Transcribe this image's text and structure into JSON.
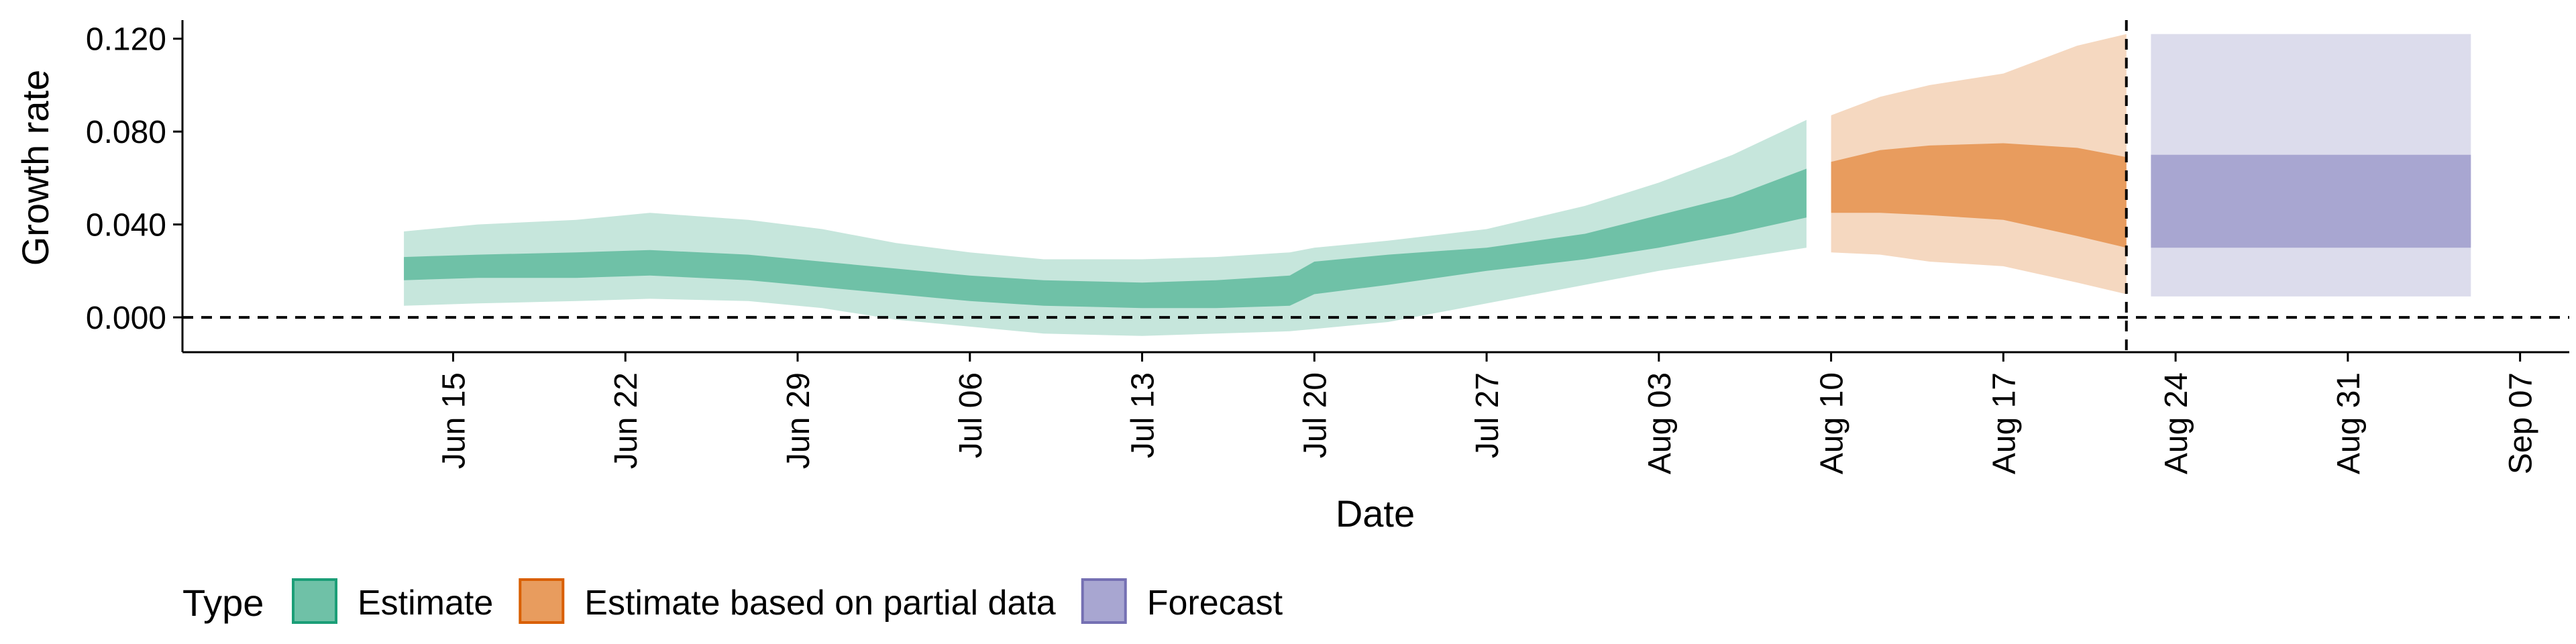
{
  "chart_data": {
    "type": "area",
    "title": "",
    "xlabel": "Date",
    "ylabel": "Growth rate",
    "x_axis": {
      "range": [
        "2020-06-04",
        "2020-09-09"
      ],
      "ticks": [
        {
          "date": "2020-06-15",
          "label": "Jun 15"
        },
        {
          "date": "2020-06-22",
          "label": "Jun 22"
        },
        {
          "date": "2020-06-29",
          "label": "Jun 29"
        },
        {
          "date": "2020-07-06",
          "label": "Jul 06"
        },
        {
          "date": "2020-07-13",
          "label": "Jul 13"
        },
        {
          "date": "2020-07-20",
          "label": "Jul 20"
        },
        {
          "date": "2020-07-27",
          "label": "Jul 27"
        },
        {
          "date": "2020-08-03",
          "label": "Aug 03"
        },
        {
          "date": "2020-08-10",
          "label": "Aug 10"
        },
        {
          "date": "2020-08-17",
          "label": "Aug 17"
        },
        {
          "date": "2020-08-24",
          "label": "Aug 24"
        },
        {
          "date": "2020-08-31",
          "label": "Aug 31"
        },
        {
          "date": "2020-09-07",
          "label": "Sep 07"
        }
      ]
    },
    "y_axis": {
      "range": [
        -0.015,
        0.128
      ],
      "ticks": [
        {
          "value": 0.0,
          "label": "0.000"
        },
        {
          "value": 0.04,
          "label": "0.040"
        },
        {
          "value": 0.08,
          "label": "0.080"
        },
        {
          "value": 0.12,
          "label": "0.120"
        }
      ]
    },
    "reference_lines": {
      "horizontal_y": 0.0,
      "vertical_date": "2020-08-22"
    },
    "grid": false,
    "legend": {
      "title": "Type",
      "position": "bottom-left",
      "entries": [
        {
          "label": "Estimate",
          "fill": "#6fc1a7",
          "border": "#1b9e77"
        },
        {
          "label": "Estimate based on partial data",
          "fill": "#e89c5e",
          "border": "#d95f02"
        },
        {
          "label": "Forecast",
          "fill": "#a8a6d1",
          "border": "#7570b3"
        }
      ]
    },
    "series": [
      {
        "type_label": "Estimate",
        "outer_color": "#c6e6dc",
        "inner_color": "#6fc1a7",
        "points": [
          {
            "date": "2020-06-13",
            "lo90": 0.005,
            "lo50": 0.016,
            "hi50": 0.026,
            "hi90": 0.037
          },
          {
            "date": "2020-06-16",
            "lo90": 0.006,
            "lo50": 0.017,
            "hi50": 0.027,
            "hi90": 0.04
          },
          {
            "date": "2020-06-20",
            "lo90": 0.007,
            "lo50": 0.017,
            "hi50": 0.028,
            "hi90": 0.042
          },
          {
            "date": "2020-06-23",
            "lo90": 0.008,
            "lo50": 0.018,
            "hi50": 0.029,
            "hi90": 0.045
          },
          {
            "date": "2020-06-27",
            "lo90": 0.007,
            "lo50": 0.016,
            "hi50": 0.027,
            "hi90": 0.042
          },
          {
            "date": "2020-06-30",
            "lo90": 0.004,
            "lo50": 0.013,
            "hi50": 0.024,
            "hi90": 0.038
          },
          {
            "date": "2020-07-03",
            "lo90": -0.001,
            "lo50": 0.01,
            "hi50": 0.021,
            "hi90": 0.032
          },
          {
            "date": "2020-07-06",
            "lo90": -0.004,
            "lo50": 0.007,
            "hi50": 0.018,
            "hi90": 0.028
          },
          {
            "date": "2020-07-09",
            "lo90": -0.007,
            "lo50": 0.005,
            "hi50": 0.016,
            "hi90": 0.025
          },
          {
            "date": "2020-07-13",
            "lo90": -0.008,
            "lo50": 0.004,
            "hi50": 0.015,
            "hi90": 0.025
          },
          {
            "date": "2020-07-16",
            "lo90": -0.007,
            "lo50": 0.004,
            "hi50": 0.016,
            "hi90": 0.026
          },
          {
            "date": "2020-07-19",
            "lo90": -0.006,
            "lo50": 0.005,
            "hi50": 0.018,
            "hi90": 0.028
          },
          {
            "date": "2020-07-20",
            "lo90": -0.005,
            "lo50": 0.01,
            "hi50": 0.024,
            "hi90": 0.03
          },
          {
            "date": "2020-07-23",
            "lo90": -0.002,
            "lo50": 0.014,
            "hi50": 0.027,
            "hi90": 0.033
          },
          {
            "date": "2020-07-27",
            "lo90": 0.006,
            "lo50": 0.02,
            "hi50": 0.03,
            "hi90": 0.038
          },
          {
            "date": "2020-07-31",
            "lo90": 0.014,
            "lo50": 0.025,
            "hi50": 0.036,
            "hi90": 0.048
          },
          {
            "date": "2020-08-03",
            "lo90": 0.02,
            "lo50": 0.03,
            "hi50": 0.044,
            "hi90": 0.058
          },
          {
            "date": "2020-08-06",
            "lo90": 0.025,
            "lo50": 0.036,
            "hi50": 0.052,
            "hi90": 0.07
          },
          {
            "date": "2020-08-09",
            "lo90": 0.03,
            "lo50": 0.043,
            "hi50": 0.064,
            "hi90": 0.085
          }
        ]
      },
      {
        "type_label": "Estimate based on partial data",
        "outer_color": "#f5d8c0",
        "inner_color": "#e89c5e",
        "points": [
          {
            "date": "2020-08-10",
            "lo90": 0.028,
            "lo50": 0.045,
            "hi50": 0.067,
            "hi90": 0.087
          },
          {
            "date": "2020-08-12",
            "lo90": 0.027,
            "lo50": 0.045,
            "hi50": 0.072,
            "hi90": 0.095
          },
          {
            "date": "2020-08-14",
            "lo90": 0.024,
            "lo50": 0.044,
            "hi50": 0.074,
            "hi90": 0.1
          },
          {
            "date": "2020-08-17",
            "lo90": 0.022,
            "lo50": 0.042,
            "hi50": 0.075,
            "hi90": 0.105
          },
          {
            "date": "2020-08-20",
            "lo90": 0.015,
            "lo50": 0.035,
            "hi50": 0.073,
            "hi90": 0.117
          },
          {
            "date": "2020-08-22",
            "lo90": 0.01,
            "lo50": 0.03,
            "hi50": 0.069,
            "hi90": 0.122
          }
        ]
      },
      {
        "type_label": "Forecast",
        "outer_color": "#dcdcec",
        "inner_color": "#a8a6d1",
        "points": [
          {
            "date": "2020-08-23",
            "lo90": 0.009,
            "lo50": 0.03,
            "hi50": 0.07,
            "hi90": 0.122
          },
          {
            "date": "2020-09-05",
            "lo90": 0.009,
            "lo50": 0.03,
            "hi50": 0.07,
            "hi90": 0.122
          }
        ]
      }
    ]
  }
}
